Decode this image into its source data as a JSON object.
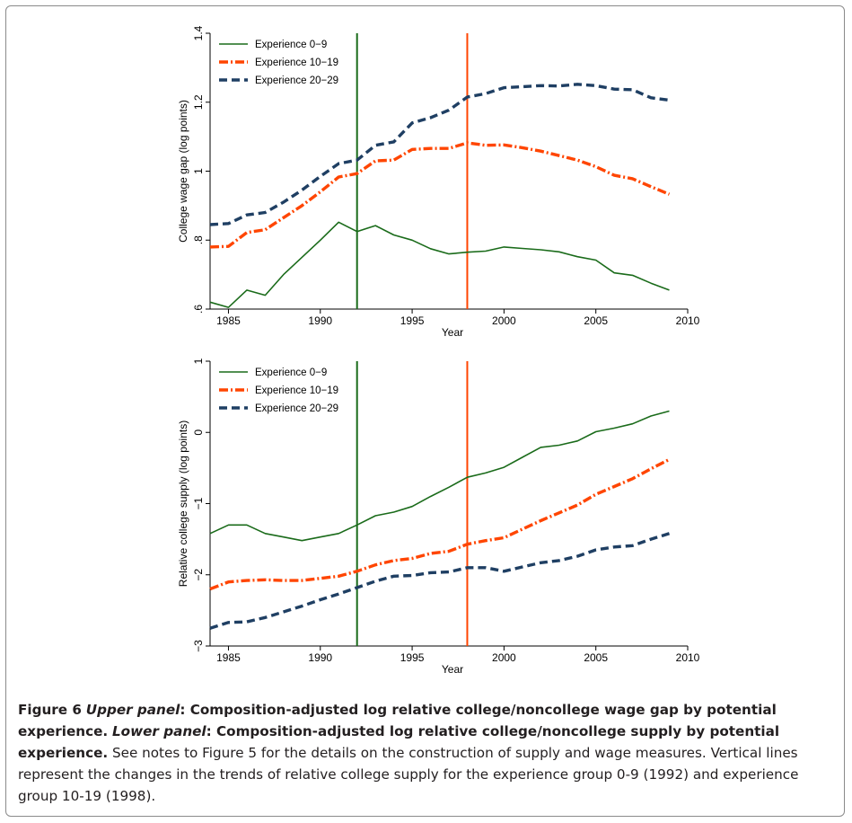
{
  "chart_data": [
    {
      "type": "line",
      "panel": "upper",
      "xlabel": "Year",
      "ylabel": "College wage gap (log points)",
      "xlim": [
        1984,
        2010
      ],
      "ylim": [
        0.6,
        1.4
      ],
      "xticks": [
        1985,
        1990,
        1995,
        2000,
        2005,
        2010
      ],
      "yticks": [
        0.6,
        0.8,
        1.0,
        1.2,
        1.4
      ],
      "ytick_labels": [
        ".6",
        ".8",
        "1",
        "1.2",
        "1.4"
      ],
      "vlines": [
        {
          "x": 1992,
          "color": "#1a6b1a"
        },
        {
          "x": 1998,
          "color": "#ff4500"
        }
      ],
      "legend_position": "top-left",
      "x": [
        1984,
        1985,
        1986,
        1987,
        1988,
        1989,
        1990,
        1991,
        1992,
        1993,
        1994,
        1995,
        1996,
        1997,
        1998,
        1999,
        2000,
        2001,
        2002,
        2003,
        2004,
        2005,
        2006,
        2007,
        2008,
        2009
      ],
      "series": [
        {
          "name": "Experience 0−9",
          "color": "#1a6b1a",
          "style": "solid",
          "values": [
            0.62,
            0.605,
            0.655,
            0.64,
            0.7,
            0.75,
            0.8,
            0.852,
            0.825,
            0.842,
            0.815,
            0.8,
            0.775,
            0.76,
            0.765,
            0.768,
            0.78,
            0.776,
            0.772,
            0.766,
            0.752,
            0.742,
            0.705,
            0.698,
            0.675,
            0.655
          ]
        },
        {
          "name": "Experience 10−19",
          "color": "#ff4500",
          "style": "dashdot",
          "values": [
            0.78,
            0.782,
            0.822,
            0.83,
            0.865,
            0.9,
            0.94,
            0.983,
            0.993,
            1.03,
            1.032,
            1.063,
            1.066,
            1.066,
            1.082,
            1.075,
            1.076,
            1.068,
            1.058,
            1.045,
            1.032,
            1.013,
            0.988,
            0.978,
            0.955,
            0.933
          ]
        },
        {
          "name": "Experience 20−29",
          "color": "#1f3f63",
          "style": "dash",
          "values": [
            0.845,
            0.848,
            0.873,
            0.88,
            0.91,
            0.945,
            0.985,
            1.022,
            1.032,
            1.075,
            1.085,
            1.14,
            1.155,
            1.177,
            1.215,
            1.225,
            1.242,
            1.245,
            1.248,
            1.247,
            1.252,
            1.248,
            1.238,
            1.236,
            1.213,
            1.206
          ]
        }
      ]
    },
    {
      "type": "line",
      "panel": "lower",
      "xlabel": "Year",
      "ylabel": "Relative college supply (log points)",
      "xlim": [
        1984,
        2010
      ],
      "ylim": [
        -3,
        1
      ],
      "xticks": [
        1985,
        1990,
        1995,
        2000,
        2005,
        2010
      ],
      "yticks": [
        -3,
        -2,
        -1,
        0,
        1
      ],
      "ytick_labels": [
        "−3",
        "−2",
        "−1",
        "0",
        "1"
      ],
      "vlines": [
        {
          "x": 1992,
          "color": "#1a6b1a"
        },
        {
          "x": 1998,
          "color": "#ff4500"
        }
      ],
      "legend_position": "top-left",
      "x": [
        1984,
        1985,
        1986,
        1987,
        1988,
        1989,
        1990,
        1991,
        1992,
        1993,
        1994,
        1995,
        1996,
        1997,
        1998,
        1999,
        2000,
        2001,
        2002,
        2003,
        2004,
        2005,
        2006,
        2007,
        2008,
        2009
      ],
      "series": [
        {
          "name": "Experience 0−9",
          "color": "#1a6b1a",
          "style": "solid",
          "values": [
            -1.42,
            -1.3,
            -1.3,
            -1.42,
            -1.47,
            -1.52,
            -1.47,
            -1.42,
            -1.3,
            -1.17,
            -1.12,
            -1.04,
            -0.9,
            -0.77,
            -0.63,
            -0.57,
            -0.49,
            -0.35,
            -0.21,
            -0.18,
            -0.12,
            0.01,
            0.06,
            0.12,
            0.23,
            0.3
          ]
        },
        {
          "name": "Experience 10−19",
          "color": "#ff4500",
          "style": "dashdot",
          "values": [
            -2.2,
            -2.1,
            -2.08,
            -2.07,
            -2.08,
            -2.08,
            -2.05,
            -2.02,
            -1.95,
            -1.86,
            -1.8,
            -1.77,
            -1.7,
            -1.67,
            -1.57,
            -1.52,
            -1.48,
            -1.36,
            -1.24,
            -1.13,
            -1.02,
            -0.87,
            -0.76,
            -0.65,
            -0.51,
            -0.38
          ]
        },
        {
          "name": "Experience 20−29",
          "color": "#1f3f63",
          "style": "dash",
          "values": [
            -2.75,
            -2.67,
            -2.66,
            -2.6,
            -2.52,
            -2.44,
            -2.35,
            -2.27,
            -2.18,
            -2.09,
            -2.02,
            -2.01,
            -1.97,
            -1.96,
            -1.9,
            -1.9,
            -1.95,
            -1.89,
            -1.83,
            -1.8,
            -1.74,
            -1.65,
            -1.61,
            -1.59,
            -1.5,
            -1.42
          ]
        }
      ]
    }
  ],
  "caption": {
    "figure_label": "Figure 6",
    "upper_label": "Upper panel",
    "upper_text": ": Composition-adjusted log relative college/noncollege wage gap by potential experience.",
    "lower_label": "Lower panel",
    "lower_text": ": Composition-adjusted log relative college/noncollege supply by potential experience.",
    "notes": "See notes to Figure 5 for the details on the construction of supply and wage measures. Vertical lines represent the changes in the trends of relative college supply for the experience group 0-9 (1992) and experience group 10-19 (1998)."
  }
}
